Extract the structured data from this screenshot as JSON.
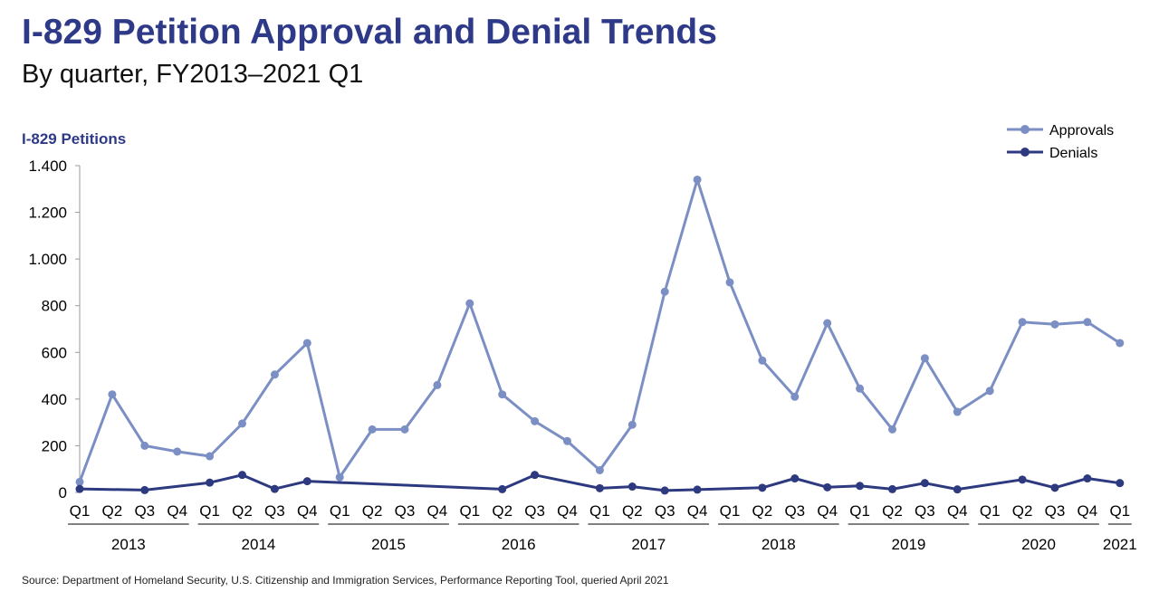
{
  "header": {
    "title": "I-829 Petition Approval and Denial Trends",
    "subtitle": "By quarter, FY2013–2021 Q1"
  },
  "footer": {
    "source": "Source: Department of Homeland Security, U.S. Citizenship and Immigration Services, Performance Reporting Tool, queried April 2021"
  },
  "chart_data": {
    "type": "line",
    "title": "I-829 Petition Approval and Denial Trends",
    "subtitle": "By quarter, FY2013–2021 Q1",
    "ylabel": "I-829 Petitions",
    "xlabel": "",
    "ylim": [
      0,
      1400
    ],
    "yticks": [
      0,
      200,
      400,
      600,
      800,
      1000,
      1200,
      1400
    ],
    "ytick_labels": [
      "0",
      "200",
      "400",
      "600",
      "800",
      "1.000",
      "1.200",
      "1.400"
    ],
    "legend_position": "top-right",
    "grid": false,
    "categories": [
      "Q1",
      "Q2",
      "Q3",
      "Q4",
      "Q1",
      "Q2",
      "Q3",
      "Q4",
      "Q1",
      "Q2",
      "Q3",
      "Q4",
      "Q1",
      "Q2",
      "Q3",
      "Q4",
      "Q1",
      "Q2",
      "Q3",
      "Q4",
      "Q1",
      "Q2",
      "Q3",
      "Q4",
      "Q1",
      "Q2",
      "Q3",
      "Q4",
      "Q1",
      "Q2",
      "Q3",
      "Q4",
      "Q1"
    ],
    "years": [
      {
        "label": "2013",
        "quarters": 4
      },
      {
        "label": "2014",
        "quarters": 4
      },
      {
        "label": "2015",
        "quarters": 4
      },
      {
        "label": "2016",
        "quarters": 4
      },
      {
        "label": "2017",
        "quarters": 4
      },
      {
        "label": "2018",
        "quarters": 4
      },
      {
        "label": "2019",
        "quarters": 4
      },
      {
        "label": "2020",
        "quarters": 4
      },
      {
        "label": "2021",
        "quarters": 1
      }
    ],
    "series": [
      {
        "name": "Approvals",
        "color": "#7b8fc4",
        "values": [
          45,
          420,
          200,
          175,
          155,
          295,
          505,
          640,
          65,
          270,
          270,
          460,
          810,
          420,
          305,
          220,
          95,
          290,
          860,
          1340,
          900,
          565,
          410,
          725,
          445,
          270,
          575,
          345,
          435,
          730,
          720,
          730,
          640
        ]
      },
      {
        "name": "Denials",
        "color": "#2e3a80",
        "values": [
          15,
          null,
          10,
          null,
          42,
          75,
          15,
          48,
          null,
          null,
          null,
          null,
          null,
          14,
          75,
          null,
          18,
          25,
          8,
          12,
          null,
          20,
          60,
          22,
          28,
          14,
          40,
          13,
          null,
          55,
          20,
          60,
          40
        ]
      }
    ]
  }
}
